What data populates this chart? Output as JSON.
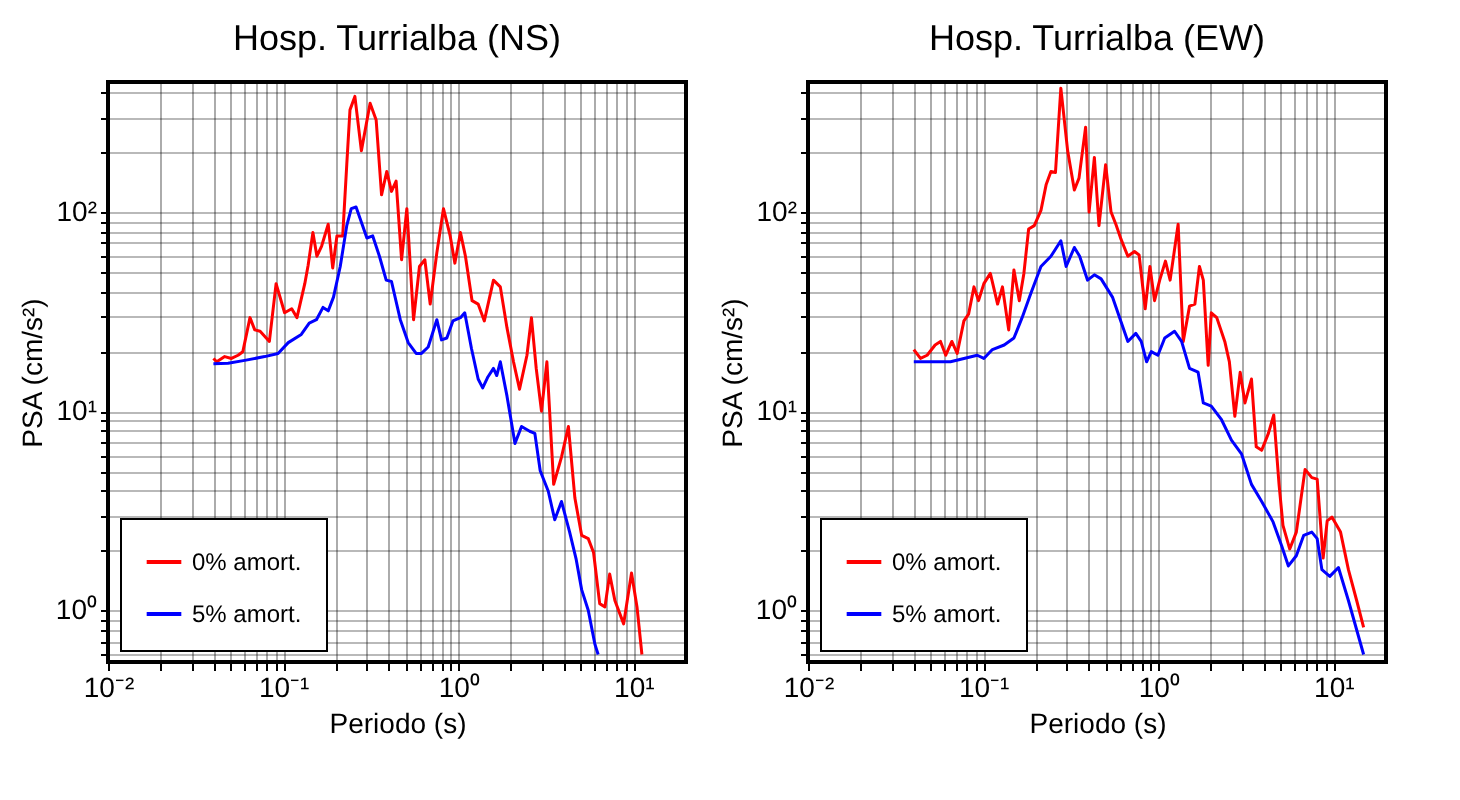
{
  "chart_data": [
    {
      "type": "line",
      "title": "Hosp. Turrialba (NS)",
      "xlabel": "Periodo (s)",
      "ylabel": "PSA (cm/s²)",
      "log": "xy",
      "grid": true,
      "legend": "bottom left",
      "xlim": [
        0.01,
        20
      ],
      "ylim": [
        0.55,
        450
      ],
      "xticks": [
        {
          "value": 0.01,
          "label": "10⁻²"
        },
        {
          "value": 0.02,
          "label": null
        },
        {
          "value": 0.03,
          "label": null
        },
        {
          "value": 0.04,
          "label": null
        },
        {
          "value": 0.05,
          "label": null
        },
        {
          "value": 0.06,
          "label": null
        },
        {
          "value": 0.07,
          "label": null
        },
        {
          "value": 0.08,
          "label": null
        },
        {
          "value": 0.09,
          "label": null
        },
        {
          "value": 0.1,
          "label": "10⁻¹"
        },
        {
          "value": 0.2,
          "label": null
        },
        {
          "value": 0.3,
          "label": null
        },
        {
          "value": 0.4,
          "label": null
        },
        {
          "value": 0.5,
          "label": null
        },
        {
          "value": 0.6,
          "label": null
        },
        {
          "value": 0.7,
          "label": null
        },
        {
          "value": 0.8,
          "label": null
        },
        {
          "value": 0.9,
          "label": null
        },
        {
          "value": 1,
          "label": "10⁰"
        },
        {
          "value": 2,
          "label": null
        },
        {
          "value": 3,
          "label": null
        },
        {
          "value": 4,
          "label": null
        },
        {
          "value": 5,
          "label": null
        },
        {
          "value": 6,
          "label": null
        },
        {
          "value": 7,
          "label": null
        },
        {
          "value": 8,
          "label": null
        },
        {
          "value": 9,
          "label": null
        },
        {
          "value": 10,
          "label": "10¹"
        }
      ],
      "yticks": [
        {
          "value": 0.6,
          "label": null
        },
        {
          "value": 0.7,
          "label": null
        },
        {
          "value": 0.8,
          "label": null
        },
        {
          "value": 0.9,
          "label": null
        },
        {
          "value": 1,
          "label": "10⁰"
        },
        {
          "value": 2,
          "label": null
        },
        {
          "value": 3,
          "label": null
        },
        {
          "value": 4,
          "label": null
        },
        {
          "value": 5,
          "label": null
        },
        {
          "value": 6,
          "label": null
        },
        {
          "value": 7,
          "label": null
        },
        {
          "value": 8,
          "label": null
        },
        {
          "value": 9,
          "label": null
        },
        {
          "value": 10,
          "label": "10¹"
        },
        {
          "value": 20,
          "label": null
        },
        {
          "value": 30,
          "label": null
        },
        {
          "value": 40,
          "label": null
        },
        {
          "value": 50,
          "label": null
        },
        {
          "value": 60,
          "label": null
        },
        {
          "value": 70,
          "label": null
        },
        {
          "value": 80,
          "label": null
        },
        {
          "value": 90,
          "label": null
        },
        {
          "value": 100,
          "label": "10²"
        },
        {
          "value": 200,
          "label": null
        },
        {
          "value": 300,
          "label": null
        },
        {
          "value": 400,
          "label": null
        }
      ],
      "series": [
        {
          "name": "0% amort.",
          "color": "#ff0000",
          "x": [
            0.04,
            0.0418,
            0.0464,
            0.0507,
            0.0553,
            0.0589,
            0.0647,
            0.0689,
            0.0739,
            0.0835,
            0.0912,
            0.102,
            0.112,
            0.12,
            0.133,
            0.139,
            0.148,
            0.156,
            0.166,
            0.181,
            0.192,
            0.203,
            0.219,
            0.231,
            0.241,
            0.257,
            0.28,
            0.314,
            0.34,
            0.365,
            0.391,
            0.416,
            0.442,
            0.475,
            0.509,
            0.556,
            0.601,
            0.645,
            0.692,
            0.755,
            0.824,
            0.9,
            0.957,
            1.03,
            1.1,
            1.2,
            1.3,
            1.41,
            1.59,
            1.74,
            1.9,
            2.07,
            2.24,
            2.47,
            2.62,
            2.79,
            2.99,
            3.21,
            3.51,
            3.89,
            4.26,
            4.64,
            5.07,
            5.53,
            5.93,
            6.43,
            6.89,
            7.33,
            7.85,
            8.81,
            9.77,
            10.5,
            11.2
          ],
          "values": [
            18.4,
            17.7,
            18.8,
            18.4,
            19.1,
            19.9,
            29.5,
            25.6,
            25.2,
            22.4,
            43.7,
            31.2,
            32.7,
            29.5,
            43.7,
            54.1,
            78.9,
            60,
            67.5,
            86.8,
            52.4,
            75.9,
            75.9,
            173,
            326,
            381,
            203,
            352,
            290,
            122,
            160,
            127,
            143,
            57.6,
            104,
            28.8,
            53.3,
            57.6,
            34.5,
            62.4,
            104,
            75.9,
            55.4,
            78.9,
            60,
            35.9,
            34.5,
            28.4,
            45.5,
            42.1,
            26.2,
            17.7,
            12.9,
            19.1,
            29.5,
            16.4,
            10,
            17.7,
            4.29,
            5.88,
            8.38,
            3.66,
            2.38,
            2.29,
            1.95,
            1.08,
            1.04,
            1.52,
            1.12,
            0.855,
            1.54,
            1.04,
            0.6
          ]
        },
        {
          "name": "5% amort.",
          "color": "#0000ff",
          "x": [
            0.04,
            0.0485,
            0.0604,
            0.0785,
            0.0936,
            0.107,
            0.127,
            0.141,
            0.155,
            0.169,
            0.181,
            0.194,
            0.212,
            0.231,
            0.245,
            0.261,
            0.28,
            0.301,
            0.325,
            0.355,
            0.388,
            0.416,
            0.467,
            0.518,
            0.575,
            0.617,
            0.674,
            0.755,
            0.803,
            0.861,
            0.933,
            1.03,
            1.09,
            1.19,
            1.3,
            1.38,
            1.48,
            1.59,
            1.66,
            1.74,
            1.9,
            2.11,
            2.3,
            2.56,
            2.74,
            2.94,
            3.27,
            3.56,
            3.89,
            4.33,
            4.72,
            5.07,
            5.53,
            6.04,
            6.3
          ],
          "values": [
            17.3,
            17.4,
            18,
            18.8,
            19.5,
            22.1,
            24.3,
            27.7,
            28.8,
            33.2,
            31.9,
            37.4,
            53.3,
            85.5,
            104,
            106,
            88.9,
            74.1,
            75.9,
            60,
            45.5,
            44.8,
            28.8,
            22.1,
            19.5,
            19.5,
            21,
            28.8,
            22.8,
            23.3,
            28.4,
            29.5,
            31.2,
            20.7,
            14.5,
            13.1,
            14.9,
            16.4,
            15.1,
            17.7,
            11.9,
            6.89,
            8.38,
            7.93,
            7.74,
            5.02,
            3.96,
            2.85,
            3.52,
            2.47,
            1.8,
            1.27,
            1,
            0.674,
            0.6
          ]
        }
      ]
    },
    {
      "type": "line",
      "title": "Hosp. Turrialba (EW)",
      "xlabel": "Periodo (s)",
      "ylabel": "PSA (cm/s²)",
      "log": "xy",
      "grid": true,
      "legend": "bottom left",
      "xlim": [
        0.01,
        20
      ],
      "ylim": [
        0.55,
        450
      ],
      "xticks": [
        {
          "value": 0.01,
          "label": "10⁻²"
        },
        {
          "value": 0.02,
          "label": null
        },
        {
          "value": 0.03,
          "label": null
        },
        {
          "value": 0.04,
          "label": null
        },
        {
          "value": 0.05,
          "label": null
        },
        {
          "value": 0.06,
          "label": null
        },
        {
          "value": 0.07,
          "label": null
        },
        {
          "value": 0.08,
          "label": null
        },
        {
          "value": 0.09,
          "label": null
        },
        {
          "value": 0.1,
          "label": "10⁻¹"
        },
        {
          "value": 0.2,
          "label": null
        },
        {
          "value": 0.3,
          "label": null
        },
        {
          "value": 0.4,
          "label": null
        },
        {
          "value": 0.5,
          "label": null
        },
        {
          "value": 0.6,
          "label": null
        },
        {
          "value": 0.7,
          "label": null
        },
        {
          "value": 0.8,
          "label": null
        },
        {
          "value": 0.9,
          "label": null
        },
        {
          "value": 1,
          "label": "10⁰"
        },
        {
          "value": 2,
          "label": null
        },
        {
          "value": 3,
          "label": null
        },
        {
          "value": 4,
          "label": null
        },
        {
          "value": 5,
          "label": null
        },
        {
          "value": 6,
          "label": null
        },
        {
          "value": 7,
          "label": null
        },
        {
          "value": 8,
          "label": null
        },
        {
          "value": 9,
          "label": null
        },
        {
          "value": 10,
          "label": "10¹"
        }
      ],
      "yticks": [
        {
          "value": 0.6,
          "label": null
        },
        {
          "value": 0.7,
          "label": null
        },
        {
          "value": 0.8,
          "label": null
        },
        {
          "value": 0.9,
          "label": null
        },
        {
          "value": 1,
          "label": "10⁰"
        },
        {
          "value": 2,
          "label": null
        },
        {
          "value": 3,
          "label": null
        },
        {
          "value": 4,
          "label": null
        },
        {
          "value": 5,
          "label": null
        },
        {
          "value": 6,
          "label": null
        },
        {
          "value": 7,
          "label": null
        },
        {
          "value": 8,
          "label": null
        },
        {
          "value": 9,
          "label": null
        },
        {
          "value": 10,
          "label": "10¹"
        },
        {
          "value": 20,
          "label": null
        },
        {
          "value": 30,
          "label": null
        },
        {
          "value": 40,
          "label": null
        },
        {
          "value": 50,
          "label": null
        },
        {
          "value": 60,
          "label": null
        },
        {
          "value": 70,
          "label": null
        },
        {
          "value": 80,
          "label": null
        },
        {
          "value": 90,
          "label": null
        },
        {
          "value": 100,
          "label": "10²"
        },
        {
          "value": 200,
          "label": null
        },
        {
          "value": 300,
          "label": null
        },
        {
          "value": 400,
          "label": null
        }
      ],
      "series": [
        {
          "name": "0% amort.",
          "color": "#ff0000",
          "x": [
            0.0402,
            0.0439,
            0.0479,
            0.0532,
            0.0571,
            0.0612,
            0.0663,
            0.0711,
            0.0777,
            0.0826,
            0.0887,
            0.0942,
            0.101,
            0.11,
            0.121,
            0.129,
            0.14,
            0.15,
            0.161,
            0.171,
            0.182,
            0.196,
            0.214,
            0.229,
            0.244,
            0.259,
            0.278,
            0.304,
            0.332,
            0.353,
            0.385,
            0.403,
            0.432,
            0.459,
            0.501,
            0.538,
            0.573,
            0.614,
            0.671,
            0.732,
            0.778,
            0.843,
            0.897,
            0.953,
            1.02,
            1.1,
            1.17,
            1.3,
            1.39,
            1.51,
            1.62,
            1.72,
            1.81,
            1.93,
            2.01,
            2.16,
            2.4,
            2.55,
            2.74,
            2.94,
            3.13,
            3.41,
            3.63,
            3.9,
            4.26,
            4.57,
            4.9,
            5.16,
            5.64,
            6.15,
            6.9,
            7.54,
            8.09,
            8.75,
            9.23,
            9.82,
            11,
            12.2,
            13.6,
            14.9
          ],
          "values": [
            20.4,
            18.4,
            19.1,
            21.5,
            22.4,
            19.1,
            22.4,
            19.5,
            28.4,
            30.7,
            42.1,
            35.9,
            43.7,
            49.2,
            34.5,
            42.1,
            25.6,
            51.2,
            35.9,
            49.2,
            82.2,
            85.5,
            102,
            137,
            160,
            158,
            419,
            203,
            129,
            148,
            267,
            100,
            188,
            85.5,
            173,
            100,
            86.8,
            72.9,
            60,
            63.4,
            60.9,
            32.7,
            53.3,
            35.9,
            45.5,
            56.7,
            45.5,
            86.8,
            22.4,
            33.7,
            34.5,
            53.3,
            45.5,
            17,
            31.2,
            29.5,
            22.4,
            17.7,
            9.42,
            15.7,
            11,
            14.5,
            6.62,
            6.36,
            7.74,
            9.57,
            4.29,
            2.67,
            2.03,
            2.47,
            5.1,
            4.64,
            4.56,
            1.83,
            2.81,
            2.94,
            2.47,
            1.6,
            1.12,
            0.822
          ]
        },
        {
          "name": "5% amort.",
          "color": "#0000ff",
          "x": [
            0.0402,
            0.05,
            0.0651,
            0.0777,
            0.0926,
            0.101,
            0.113,
            0.132,
            0.15,
            0.167,
            0.187,
            0.214,
            0.244,
            0.278,
            0.298,
            0.332,
            0.356,
            0.395,
            0.432,
            0.472,
            0.548,
            0.631,
            0.671,
            0.745,
            0.8,
            0.859,
            0.913,
            0.996,
            1.09,
            1.24,
            1.36,
            1.51,
            1.69,
            1.81,
            2.01,
            2.3,
            2.62,
            2.99,
            3.41,
            3.9,
            4.53,
            5.07,
            5.54,
            6.15,
            6.78,
            7.54,
            8.09,
            8.61,
            9.55,
            10.7,
            12.2,
            14.9
          ],
          "values": [
            17.7,
            17.7,
            17.7,
            18.4,
            19.1,
            18.4,
            20.4,
            21.5,
            23.3,
            29.5,
            38.9,
            53.3,
            60,
            71.8,
            53.3,
            66.4,
            60,
            45.5,
            48.4,
            46.2,
            37.4,
            26.2,
            22.4,
            24.6,
            22.4,
            17.7,
            19.9,
            19.1,
            23.3,
            25.2,
            22.4,
            16.4,
            15.7,
            11,
            10.6,
            9.06,
            7.16,
            6.11,
            4.29,
            3.52,
            2.78,
            2.11,
            1.67,
            1.88,
            2.38,
            2.47,
            2.29,
            1.6,
            1.48,
            1.64,
            1.12,
            0.6
          ]
        }
      ]
    }
  ]
}
